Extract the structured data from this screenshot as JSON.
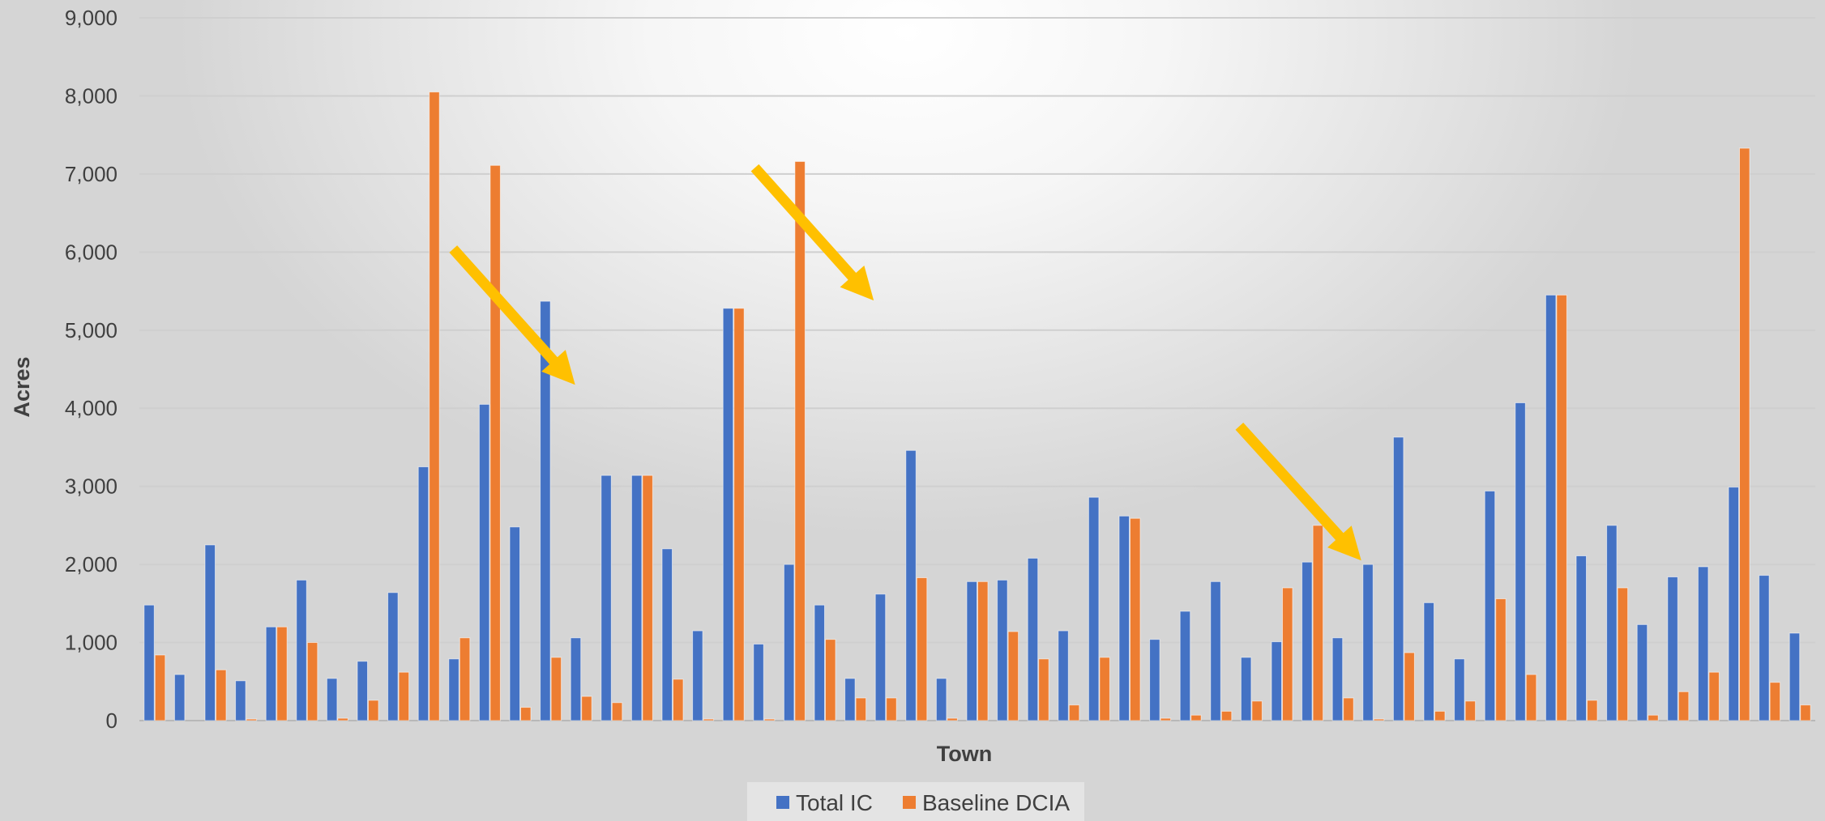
{
  "chart_data": {
    "type": "bar",
    "title": "",
    "xlabel": "Town",
    "ylabel": "Acres",
    "ylim": [
      0,
      9000
    ],
    "yticks": [
      0,
      1000,
      2000,
      3000,
      4000,
      5000,
      6000,
      7000,
      8000,
      9000
    ],
    "ytick_labels": [
      "0",
      "1,000",
      "2,000",
      "3,000",
      "4,000",
      "5,000",
      "6,000",
      "7,000",
      "8,000",
      "9,000"
    ],
    "grid": true,
    "legend_position": "bottom",
    "series": [
      {
        "name": "Total IC",
        "color": "#4472C4",
        "values": [
          1480,
          590,
          2250,
          510,
          1200,
          1800,
          540,
          760,
          1640,
          3250,
          790,
          4050,
          2480,
          5370,
          1060,
          3140,
          3140,
          2200,
          1150,
          5280,
          980,
          2000,
          1480,
          540,
          1620,
          3460,
          540,
          1780,
          1800,
          2080,
          1150,
          2860,
          2620,
          1040,
          1400,
          1780,
          810,
          1010,
          2030,
          1060,
          2000,
          3630,
          1510,
          790,
          2940,
          4070,
          5450,
          2110,
          2500,
          1230,
          1840,
          1970,
          2990,
          1860,
          1120
        ]
      },
      {
        "name": "Baseline DCIA",
        "color": "#ED7D31",
        "values": [
          840,
          0,
          650,
          20,
          1200,
          1000,
          30,
          260,
          620,
          8050,
          1060,
          7110,
          170,
          810,
          310,
          230,
          3140,
          530,
          20,
          5280,
          20,
          7160,
          1040,
          290,
          290,
          1830,
          30,
          1780,
          1140,
          790,
          200,
          810,
          2590,
          30,
          70,
          120,
          250,
          1700,
          2500,
          290,
          20,
          870,
          120,
          250,
          1560,
          590,
          5450,
          260,
          1700,
          70,
          370,
          620,
          7330,
          490,
          200
        ]
      }
    ],
    "annotations": [
      {
        "type": "arrow",
        "color": "#FFC000",
        "from": [
          9.8,
          6040
        ],
        "to": [
          13.8,
          4300
        ]
      },
      {
        "type": "arrow",
        "color": "#FFC000",
        "from": [
          19.7,
          7080
        ],
        "to": [
          23.6,
          5380
        ]
      },
      {
        "type": "arrow",
        "color": "#FFC000",
        "from": [
          35.6,
          3770
        ],
        "to": [
          39.6,
          2050
        ]
      }
    ]
  }
}
